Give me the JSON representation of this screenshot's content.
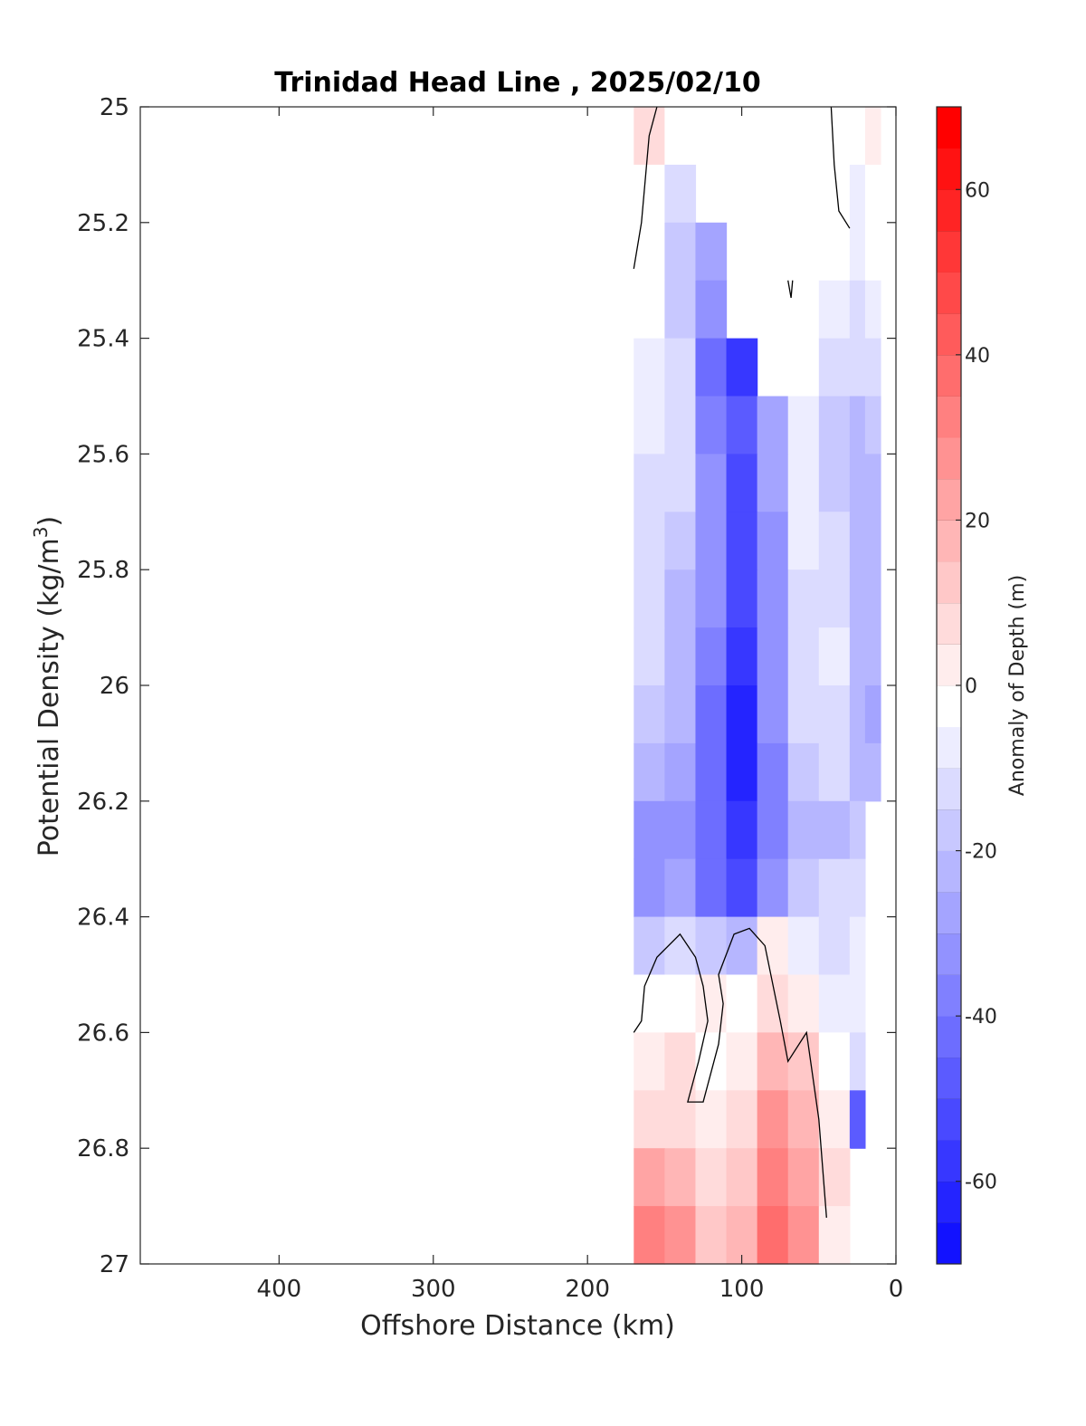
{
  "chart_data": {
    "type": "heatmap",
    "title": "Trinidad Head Line , 2025/02/10",
    "xlabel": "Offshore Distance (km)",
    "ylabel": "Potential Density (kg/m",
    "ylabel_superscript": "3",
    "ylabel_close": ")",
    "xlim": [
      490,
      0
    ],
    "ylim": [
      25,
      27
    ],
    "x_reversed": true,
    "y_reversed": true,
    "x_ticks": [
      400,
      300,
      200,
      100,
      0
    ],
    "x_tick_labels": [
      "400",
      "300",
      "200",
      "100",
      "0"
    ],
    "y_ticks": [
      25,
      25.2,
      25.4,
      25.6,
      25.8,
      26,
      26.2,
      26.4,
      26.6,
      26.8,
      27
    ],
    "y_tick_labels": [
      "25",
      "25.2",
      "25.4",
      "25.6",
      "25.8",
      "26",
      "26.2",
      "26.4",
      "26.6",
      "26.8",
      "27"
    ],
    "grid": false,
    "colorbar": {
      "label": "Anomaly of Depth (m)",
      "range": [
        -70,
        70
      ],
      "level_step": 5,
      "ticks": [
        60,
        40,
        20,
        0,
        -20,
        -40,
        -60
      ],
      "tick_labels": [
        "60",
        "40",
        "20",
        "0",
        "-20",
        "-40",
        "-60"
      ],
      "colormap": "blue-white-red",
      "low_color": "#0000ff",
      "high_color": "#ff0000"
    },
    "x": [
      170,
      150,
      130,
      110,
      90,
      70,
      50,
      30,
      20
    ],
    "y": [
      25.0,
      25.1,
      25.2,
      25.3,
      25.4,
      25.5,
      25.6,
      25.7,
      25.8,
      25.9,
      26.0,
      26.1,
      26.2,
      26.3,
      26.4,
      26.5,
      26.6,
      26.7,
      26.8,
      26.9
    ],
    "z": [
      [
        8,
        0,
        null,
        null,
        null,
        null,
        null,
        0,
        5
      ],
      [
        2,
        -8,
        null,
        null,
        null,
        null,
        null,
        -3,
        0
      ],
      [
        -2,
        -15,
        -25,
        null,
        null,
        null,
        null,
        -5,
        0
      ],
      [
        -2,
        -15,
        -32,
        null,
        null,
        null,
        -5,
        -8,
        -5
      ],
      [
        -3,
        -12,
        -38,
        -55,
        null,
        null,
        -10,
        -12,
        -10
      ],
      [
        -5,
        -10,
        -35,
        -45,
        -25,
        -5,
        -15,
        -18,
        -15
      ],
      [
        -8,
        -12,
        -30,
        -48,
        -25,
        -5,
        -15,
        -22,
        -18
      ],
      [
        -10,
        -15,
        -30,
        -50,
        -28,
        -5,
        -12,
        -22,
        -20
      ],
      [
        -10,
        -18,
        -32,
        -52,
        -28,
        -8,
        -10,
        -20,
        -22
      ],
      [
        -12,
        -20,
        -35,
        -55,
        -30,
        -10,
        -5,
        -20,
        -22
      ],
      [
        -15,
        -22,
        -38,
        -58,
        -32,
        -12,
        -10,
        -20,
        -25
      ],
      [
        -20,
        -25,
        -40,
        -60,
        -35,
        -15,
        -12,
        -20,
        -22
      ],
      [
        -28,
        -28,
        -42,
        -55,
        -35,
        -22,
        -18,
        -15,
        null
      ],
      [
        -30,
        -25,
        -40,
        -50,
        -30,
        -15,
        -12,
        -10,
        null
      ],
      [
        -15,
        -12,
        -15,
        -20,
        5,
        -5,
        -8,
        -5,
        null
      ],
      [
        -2,
        0,
        5,
        2,
        10,
        3,
        -5,
        -5,
        null
      ],
      [
        5,
        8,
        0,
        5,
        20,
        15,
        0,
        -8,
        null
      ],
      [
        12,
        10,
        5,
        10,
        30,
        20,
        5,
        -45,
        null
      ],
      [
        25,
        18,
        8,
        15,
        35,
        25,
        8,
        null,
        null
      ],
      [
        35,
        30,
        15,
        20,
        40,
        30,
        5,
        null,
        null
      ]
    ],
    "zero_contour_lines": [
      [
        [
          170,
          25.28
        ],
        [
          165,
          25.2
        ],
        [
          160,
          25.05
        ],
        [
          155,
          25.0
        ]
      ],
      [
        [
          42,
          25.0
        ],
        [
          40,
          25.1
        ],
        [
          37,
          25.18
        ],
        [
          30,
          25.21
        ]
      ],
      [
        [
          70,
          25.3
        ],
        [
          68,
          25.33
        ],
        [
          67,
          25.3
        ]
      ],
      [
        [
          170,
          26.6
        ],
        [
          165,
          26.58
        ],
        [
          163,
          26.52
        ],
        [
          155,
          26.47
        ],
        [
          140,
          26.43
        ],
        [
          130,
          26.47
        ],
        [
          125,
          26.52
        ],
        [
          122,
          26.58
        ],
        [
          128,
          26.65
        ],
        [
          135,
          26.72
        ],
        [
          125,
          26.72
        ],
        [
          115,
          26.62
        ],
        [
          112,
          26.55
        ],
        [
          115,
          26.5
        ],
        [
          105,
          26.43
        ],
        [
          95,
          26.42
        ],
        [
          85,
          26.45
        ],
        [
          75,
          26.58
        ],
        [
          70,
          26.65
        ],
        [
          58,
          26.6
        ],
        [
          50,
          26.75
        ],
        [
          45,
          26.92
        ]
      ]
    ]
  }
}
